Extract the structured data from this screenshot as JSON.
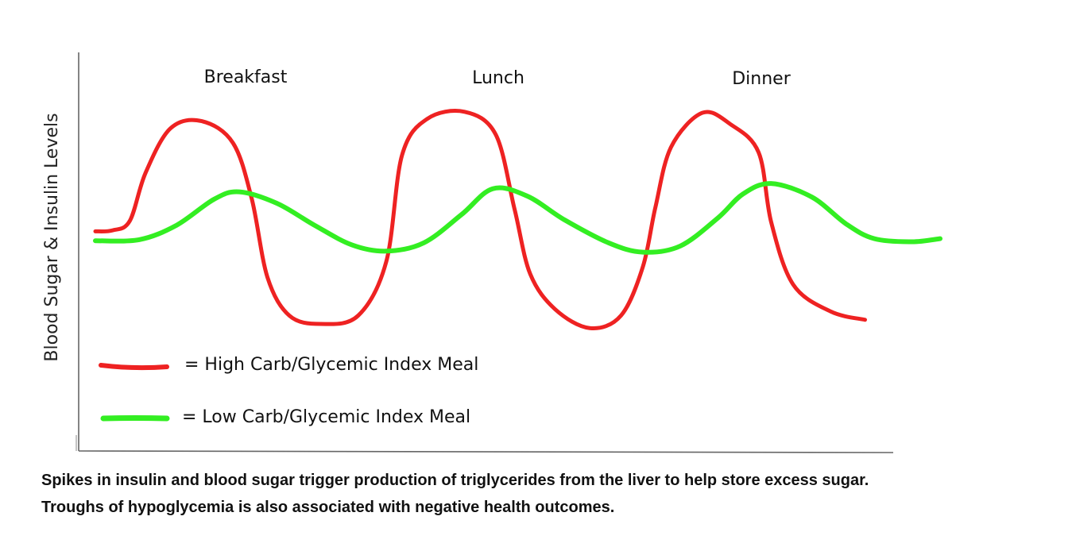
{
  "chart_data": {
    "type": "line",
    "ylabel": "Blood Sugar & Insulin Levels",
    "xlabel": "",
    "meal_labels": [
      "Breakfast",
      "Lunch",
      "Dinner"
    ],
    "grid": false,
    "legend_placement": "bottom-left",
    "series": [
      {
        "name": "= High Carb/Glycemic Index Meal",
        "color": "#ee2222",
        "points": [
          [
            0,
            0.89
          ],
          [
            0.55,
            0.9
          ],
          [
            1.1,
            0.99
          ],
          [
            1.6,
            1.45
          ],
          [
            2.4,
            1.88
          ],
          [
            3.4,
            1.95
          ],
          [
            4.4,
            1.74
          ],
          [
            5.0,
            1.2
          ],
          [
            5.5,
            0.45
          ],
          [
            6.2,
            0.08
          ],
          [
            7.2,
            0.0
          ],
          [
            8.4,
            0.08
          ],
          [
            9.3,
            0.6
          ],
          [
            9.8,
            1.62
          ],
          [
            10.6,
            1.97
          ],
          [
            11.8,
            2.04
          ],
          [
            12.8,
            1.82
          ],
          [
            13.4,
            1.1
          ],
          [
            13.9,
            0.48
          ],
          [
            14.7,
            0.14
          ],
          [
            15.8,
            -0.04
          ],
          [
            16.8,
            0.08
          ],
          [
            17.5,
            0.55
          ],
          [
            17.9,
            1.12
          ],
          [
            18.4,
            1.7
          ],
          [
            19.4,
            2.03
          ],
          [
            20.3,
            1.92
          ],
          [
            21.2,
            1.65
          ],
          [
            21.6,
            0.98
          ],
          [
            22.3,
            0.38
          ],
          [
            23.5,
            0.12
          ],
          [
            24.6,
            0.04
          ]
        ]
      },
      {
        "name": "= Low Carb/Glycemic Index Meal",
        "color": "#33ee22",
        "points": [
          [
            0,
            0.8
          ],
          [
            1.4,
            0.81
          ],
          [
            2.6,
            0.95
          ],
          [
            3.8,
            1.2
          ],
          [
            4.6,
            1.27
          ],
          [
            5.8,
            1.16
          ],
          [
            7.0,
            0.95
          ],
          [
            8.2,
            0.76
          ],
          [
            9.3,
            0.7
          ],
          [
            10.5,
            0.78
          ],
          [
            11.7,
            1.05
          ],
          [
            12.7,
            1.3
          ],
          [
            13.8,
            1.23
          ],
          [
            15.0,
            1.0
          ],
          [
            16.4,
            0.78
          ],
          [
            17.5,
            0.69
          ],
          [
            18.7,
            0.75
          ],
          [
            19.9,
            1.02
          ],
          [
            20.7,
            1.25
          ],
          [
            21.6,
            1.35
          ],
          [
            22.9,
            1.22
          ],
          [
            24.0,
            0.96
          ],
          [
            24.9,
            0.82
          ],
          [
            26.1,
            0.79
          ],
          [
            27.0,
            0.82
          ]
        ]
      }
    ]
  },
  "caption": {
    "line1": "Spikes in insulin and blood sugar trigger production of triglycerides from the liver to help store excess sugar.",
    "line2": "Troughs of hypoglycemia is also associated with negative health outcomes."
  }
}
